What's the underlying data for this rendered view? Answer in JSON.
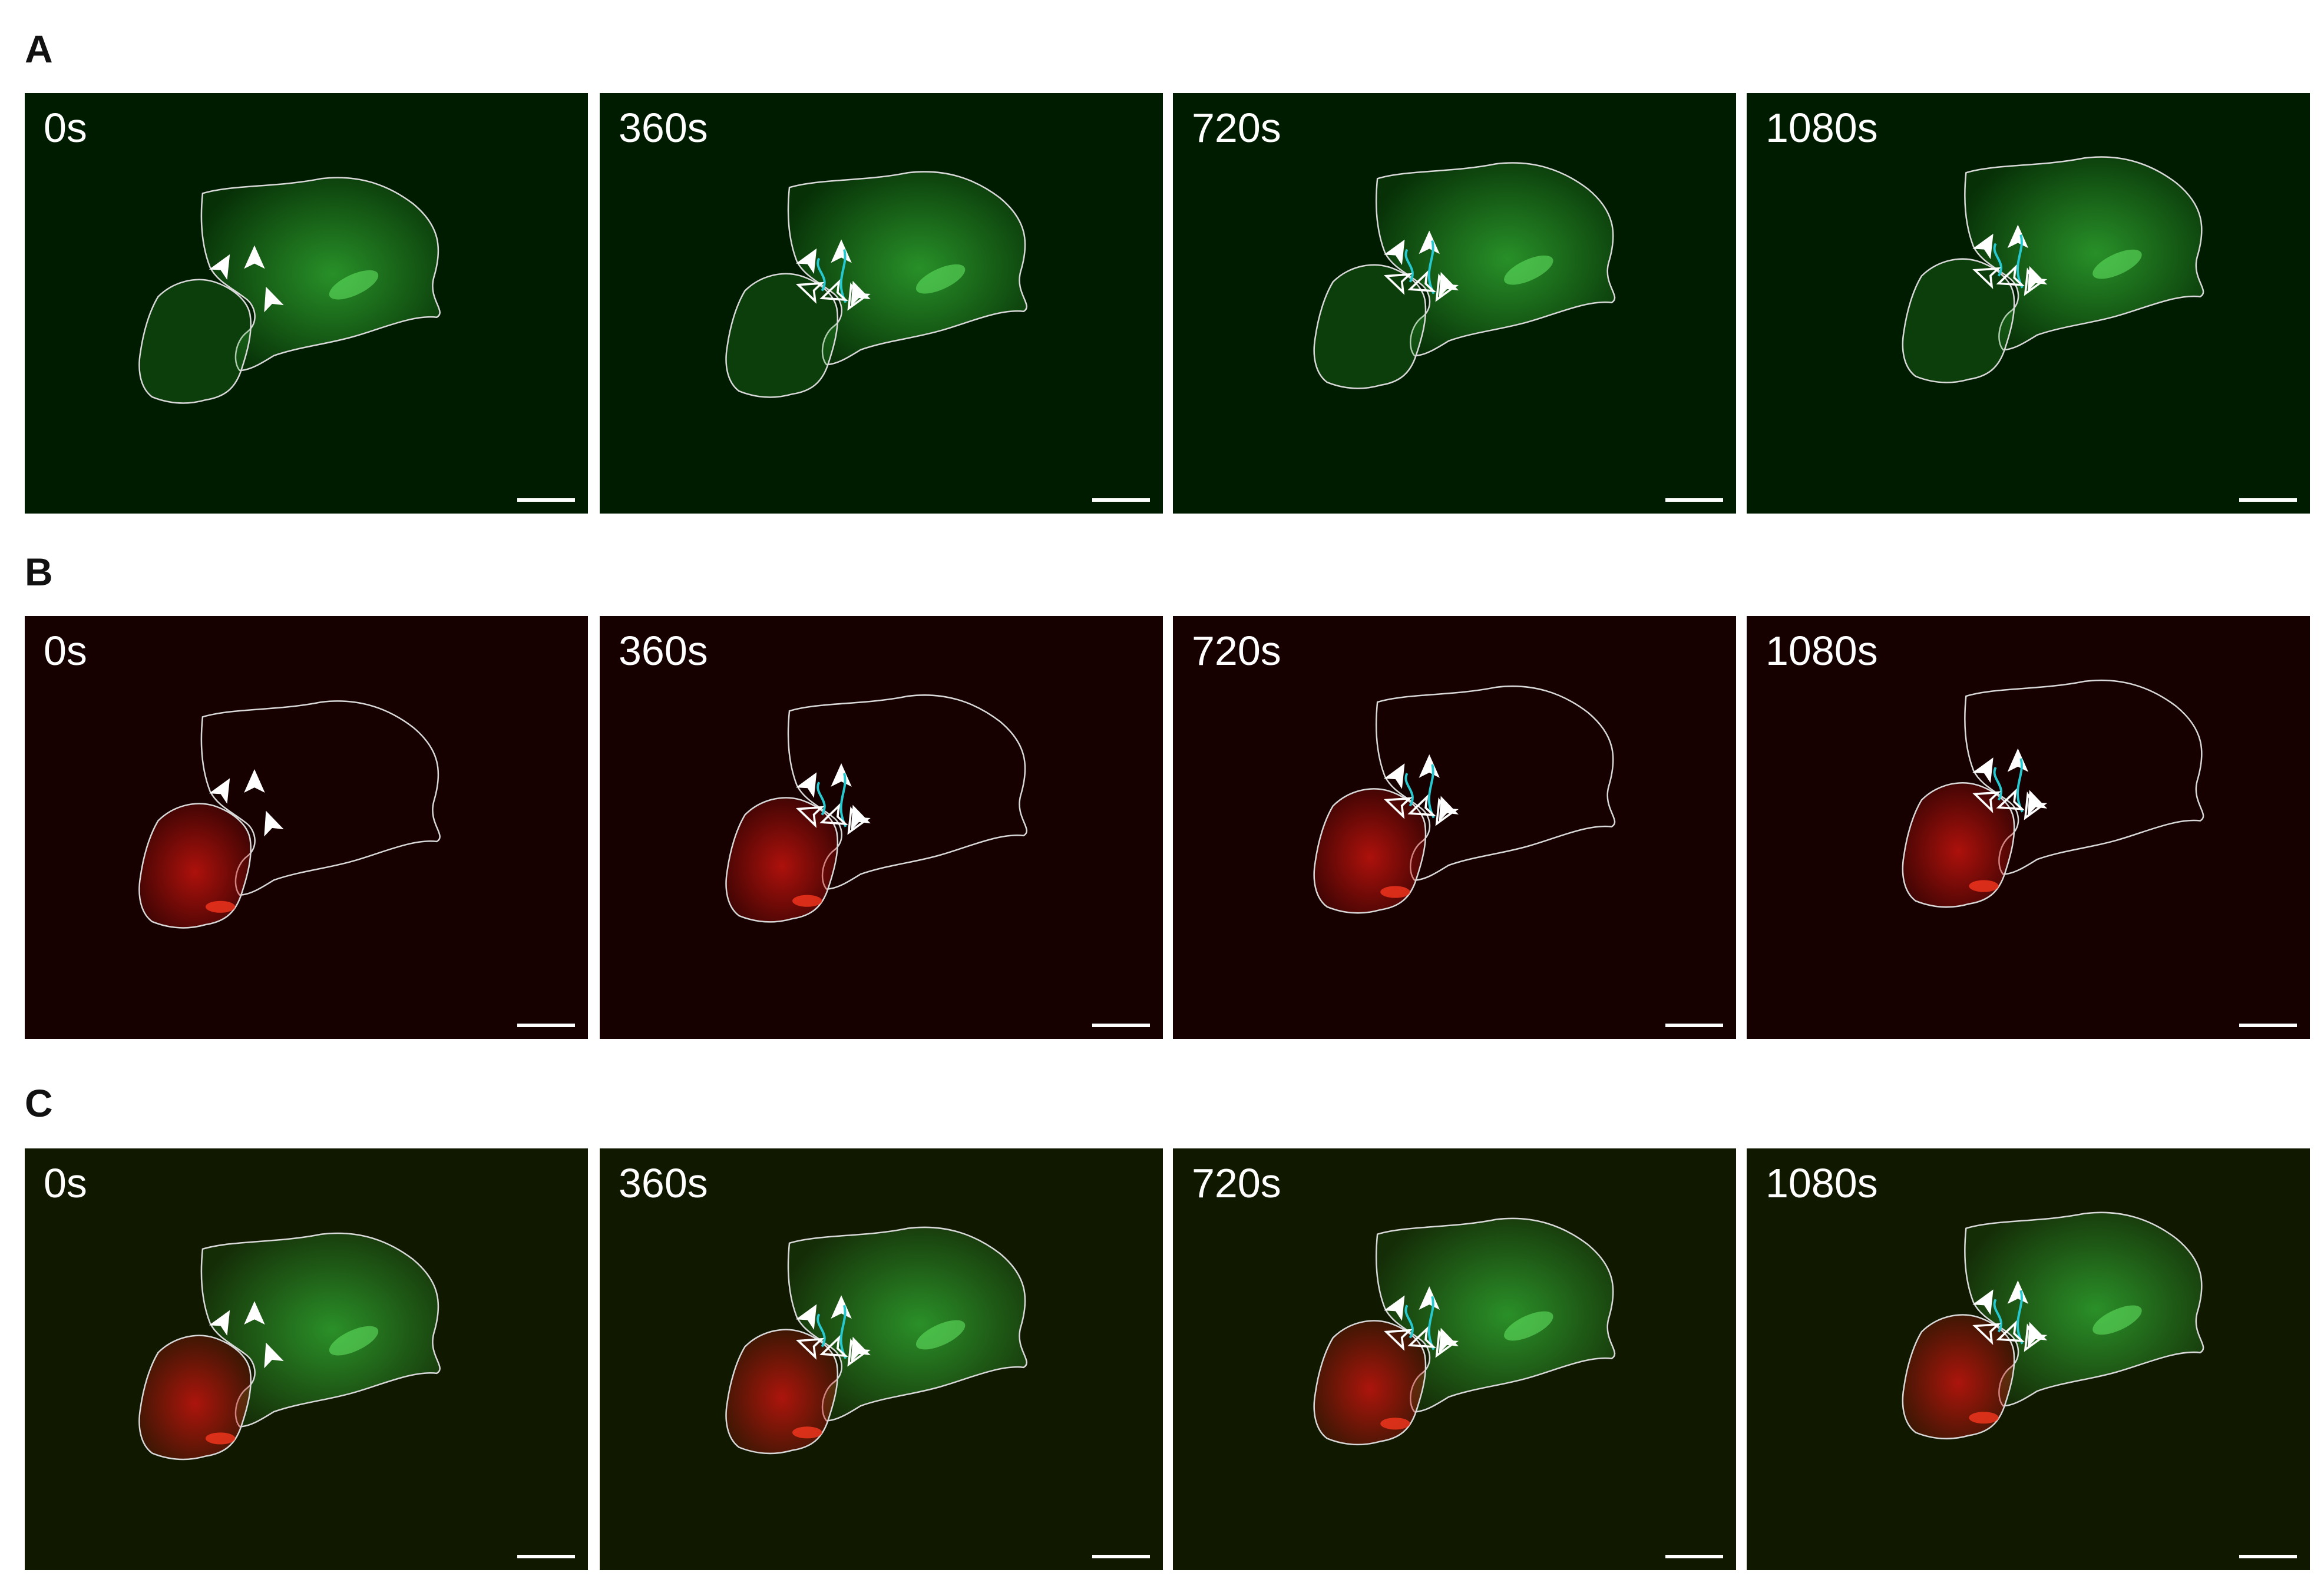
{
  "figure": {
    "rows": [
      {
        "label": "A",
        "channel": "green",
        "background": "#001c00",
        "timepoints": [
          "0s",
          "360s",
          "720s",
          "1080s"
        ]
      },
      {
        "label": "B",
        "channel": "red",
        "background": "#160000",
        "timepoints": [
          "0s",
          "360s",
          "720s",
          "1080s"
        ]
      },
      {
        "label": "C",
        "channel": "merge",
        "background": "#101800",
        "timepoints": [
          "0s",
          "360s",
          "720s",
          "1080s"
        ]
      }
    ],
    "colors": {
      "cell_outline": "#d8d8d8",
      "track": "#27c8d0",
      "arrowhead": "#ffffff",
      "green_signal": "#2fa52f",
      "red_signal": "#c8140e"
    }
  }
}
